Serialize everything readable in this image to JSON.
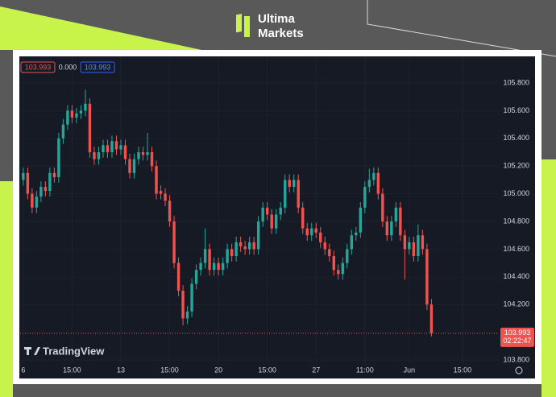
{
  "logo": {
    "line1": "Ultima",
    "line2": "Markets"
  },
  "chart_data": {
    "type": "candlestick",
    "legend_values": [
      "103.993",
      "0.000",
      "103.993"
    ],
    "watermark": "TradingView",
    "current_price": {
      "value": 103.993,
      "label": "103.993"
    },
    "countdown": "02:22:47",
    "up_color": "#26a69a",
    "down_color": "#ef5350",
    "grid": true,
    "xlim": [
      -0.7,
      107
    ],
    "xticks": [
      {
        "value": 0,
        "label": "6"
      },
      {
        "value": 11,
        "label": "15:00"
      },
      {
        "value": 22,
        "label": "13"
      },
      {
        "value": 33,
        "label": "15:00"
      },
      {
        "value": 44,
        "label": "20"
      },
      {
        "value": 55,
        "label": "15:00"
      },
      {
        "value": 66,
        "label": "27"
      },
      {
        "value": 77,
        "label": "11:00"
      },
      {
        "value": 87,
        "label": "Jun"
      },
      {
        "value": 99,
        "label": "15:00"
      }
    ],
    "ylim": [
      103.771,
      105.992
    ],
    "yticks": [
      {
        "value": 103.8,
        "label": "103.800"
      },
      {
        "value": 104.2,
        "label": "104.200"
      },
      {
        "value": 104.4,
        "label": "104.400"
      },
      {
        "value": 104.6,
        "label": "104.600"
      },
      {
        "value": 104.8,
        "label": "104.800"
      },
      {
        "value": 105.0,
        "label": "105.000"
      },
      {
        "value": 105.2,
        "label": "105.200"
      },
      {
        "value": 105.4,
        "label": "105.400"
      },
      {
        "value": 105.6,
        "label": "105.600"
      },
      {
        "value": 105.8,
        "label": "105.800"
      }
    ],
    "open": [
      105.1,
      105.15,
      105.0,
      104.9,
      104.98,
      105.05,
      105.02,
      105.15,
      105.12,
      105.4,
      105.5,
      105.6,
      105.55,
      105.58,
      105.6,
      105.65,
      105.3,
      105.25,
      105.3,
      105.35,
      105.3,
      105.38,
      105.32,
      105.35,
      105.25,
      105.15,
      105.25,
      105.3,
      105.28,
      105.3,
      105.2,
      105.02,
      105.0,
      104.95,
      104.8,
      104.5,
      104.3,
      104.1,
      104.15,
      104.35,
      104.45,
      104.5,
      104.6,
      104.45,
      104.5,
      104.45,
      104.5,
      104.6,
      104.55,
      104.65,
      104.62,
      104.6,
      104.65,
      104.6,
      104.8,
      104.9,
      104.85,
      104.75,
      104.85,
      104.9,
      105.1,
      105.05,
      105.1,
      104.9,
      104.75,
      104.7,
      104.75,
      104.72,
      104.65,
      104.6,
      104.55,
      104.45,
      104.42,
      104.5,
      104.6,
      104.7,
      104.72,
      104.9,
      105.05,
      105.1,
      105.15,
      105.0,
      104.8,
      104.7,
      104.8,
      104.9,
      104.7,
      104.6,
      104.65,
      104.55,
      104.7,
      104.6,
      104.2
    ],
    "high": [
      105.19,
      105.19,
      105.04,
      105.02,
      105.09,
      105.09,
      105.19,
      105.19,
      105.44,
      105.54,
      105.64,
      105.64,
      105.62,
      105.64,
      105.75,
      105.69,
      105.34,
      105.34,
      105.39,
      105.39,
      105.42,
      105.42,
      105.39,
      105.39,
      105.29,
      105.29,
      105.34,
      105.34,
      105.44,
      105.34,
      105.24,
      105.06,
      105.04,
      104.99,
      104.84,
      104.54,
      104.34,
      104.19,
      104.39,
      104.49,
      104.54,
      104.75,
      104.64,
      104.54,
      104.54,
      104.54,
      104.64,
      104.64,
      104.69,
      104.69,
      104.66,
      104.69,
      104.69,
      104.84,
      104.94,
      104.94,
      104.89,
      104.89,
      104.94,
      105.14,
      105.14,
      105.14,
      105.14,
      104.94,
      104.79,
      104.79,
      104.79,
      104.76,
      104.69,
      104.64,
      104.59,
      104.49,
      104.54,
      104.64,
      104.74,
      104.76,
      104.94,
      105.09,
      105.18,
      105.19,
      105.19,
      105.04,
      104.84,
      104.84,
      104.94,
      104.94,
      104.74,
      104.69,
      104.69,
      104.78,
      104.74,
      104.64,
      104.24
    ],
    "low": [
      105.06,
      104.96,
      104.86,
      104.86,
      104.94,
      104.98,
      104.98,
      105.08,
      105.08,
      105.36,
      105.46,
      105.51,
      105.51,
      105.54,
      105.56,
      105.26,
      105.21,
      105.21,
      105.26,
      105.26,
      105.26,
      105.28,
      105.28,
      105.21,
      105.11,
      105.11,
      105.21,
      105.24,
      105.24,
      105.16,
      104.96,
      104.96,
      104.91,
      104.76,
      104.46,
      104.26,
      104.05,
      104.06,
      104.11,
      104.31,
      104.41,
      104.46,
      104.41,
      104.41,
      104.41,
      104.41,
      104.46,
      104.51,
      104.51,
      104.58,
      104.56,
      104.56,
      104.56,
      104.56,
      104.76,
      104.81,
      104.71,
      104.71,
      104.81,
      104.86,
      105.01,
      105.01,
      104.86,
      104.71,
      104.66,
      104.66,
      104.68,
      104.61,
      104.56,
      104.51,
      104.41,
      104.38,
      104.38,
      104.46,
      104.56,
      104.66,
      104.68,
      104.86,
      105.01,
      105.06,
      104.96,
      104.76,
      104.66,
      104.66,
      104.76,
      104.66,
      104.38,
      104.56,
      104.51,
      104.51,
      104.56,
      104.16,
      103.97
    ],
    "close": [
      105.15,
      105.0,
      104.9,
      104.98,
      105.05,
      105.02,
      105.15,
      105.12,
      105.4,
      105.5,
      105.6,
      105.55,
      105.58,
      105.6,
      105.65,
      105.3,
      105.25,
      105.3,
      105.35,
      105.3,
      105.38,
      105.32,
      105.35,
      105.25,
      105.15,
      105.25,
      105.3,
      105.28,
      105.3,
      105.2,
      105.0,
      105.0,
      104.95,
      104.8,
      104.5,
      104.3,
      104.1,
      104.15,
      104.35,
      104.45,
      104.5,
      104.6,
      104.45,
      104.5,
      104.45,
      104.5,
      104.6,
      104.55,
      104.65,
      104.62,
      104.6,
      104.65,
      104.6,
      104.8,
      104.9,
      104.85,
      104.75,
      104.85,
      104.9,
      105.1,
      105.05,
      105.1,
      104.9,
      104.75,
      104.7,
      104.75,
      104.72,
      104.65,
      104.6,
      104.55,
      104.45,
      104.42,
      104.5,
      104.6,
      104.7,
      104.72,
      104.9,
      105.05,
      105.1,
      105.15,
      105.0,
      104.8,
      104.7,
      104.8,
      104.9,
      104.7,
      104.6,
      104.65,
      104.55,
      104.7,
      104.6,
      104.2,
      103.993
    ]
  }
}
